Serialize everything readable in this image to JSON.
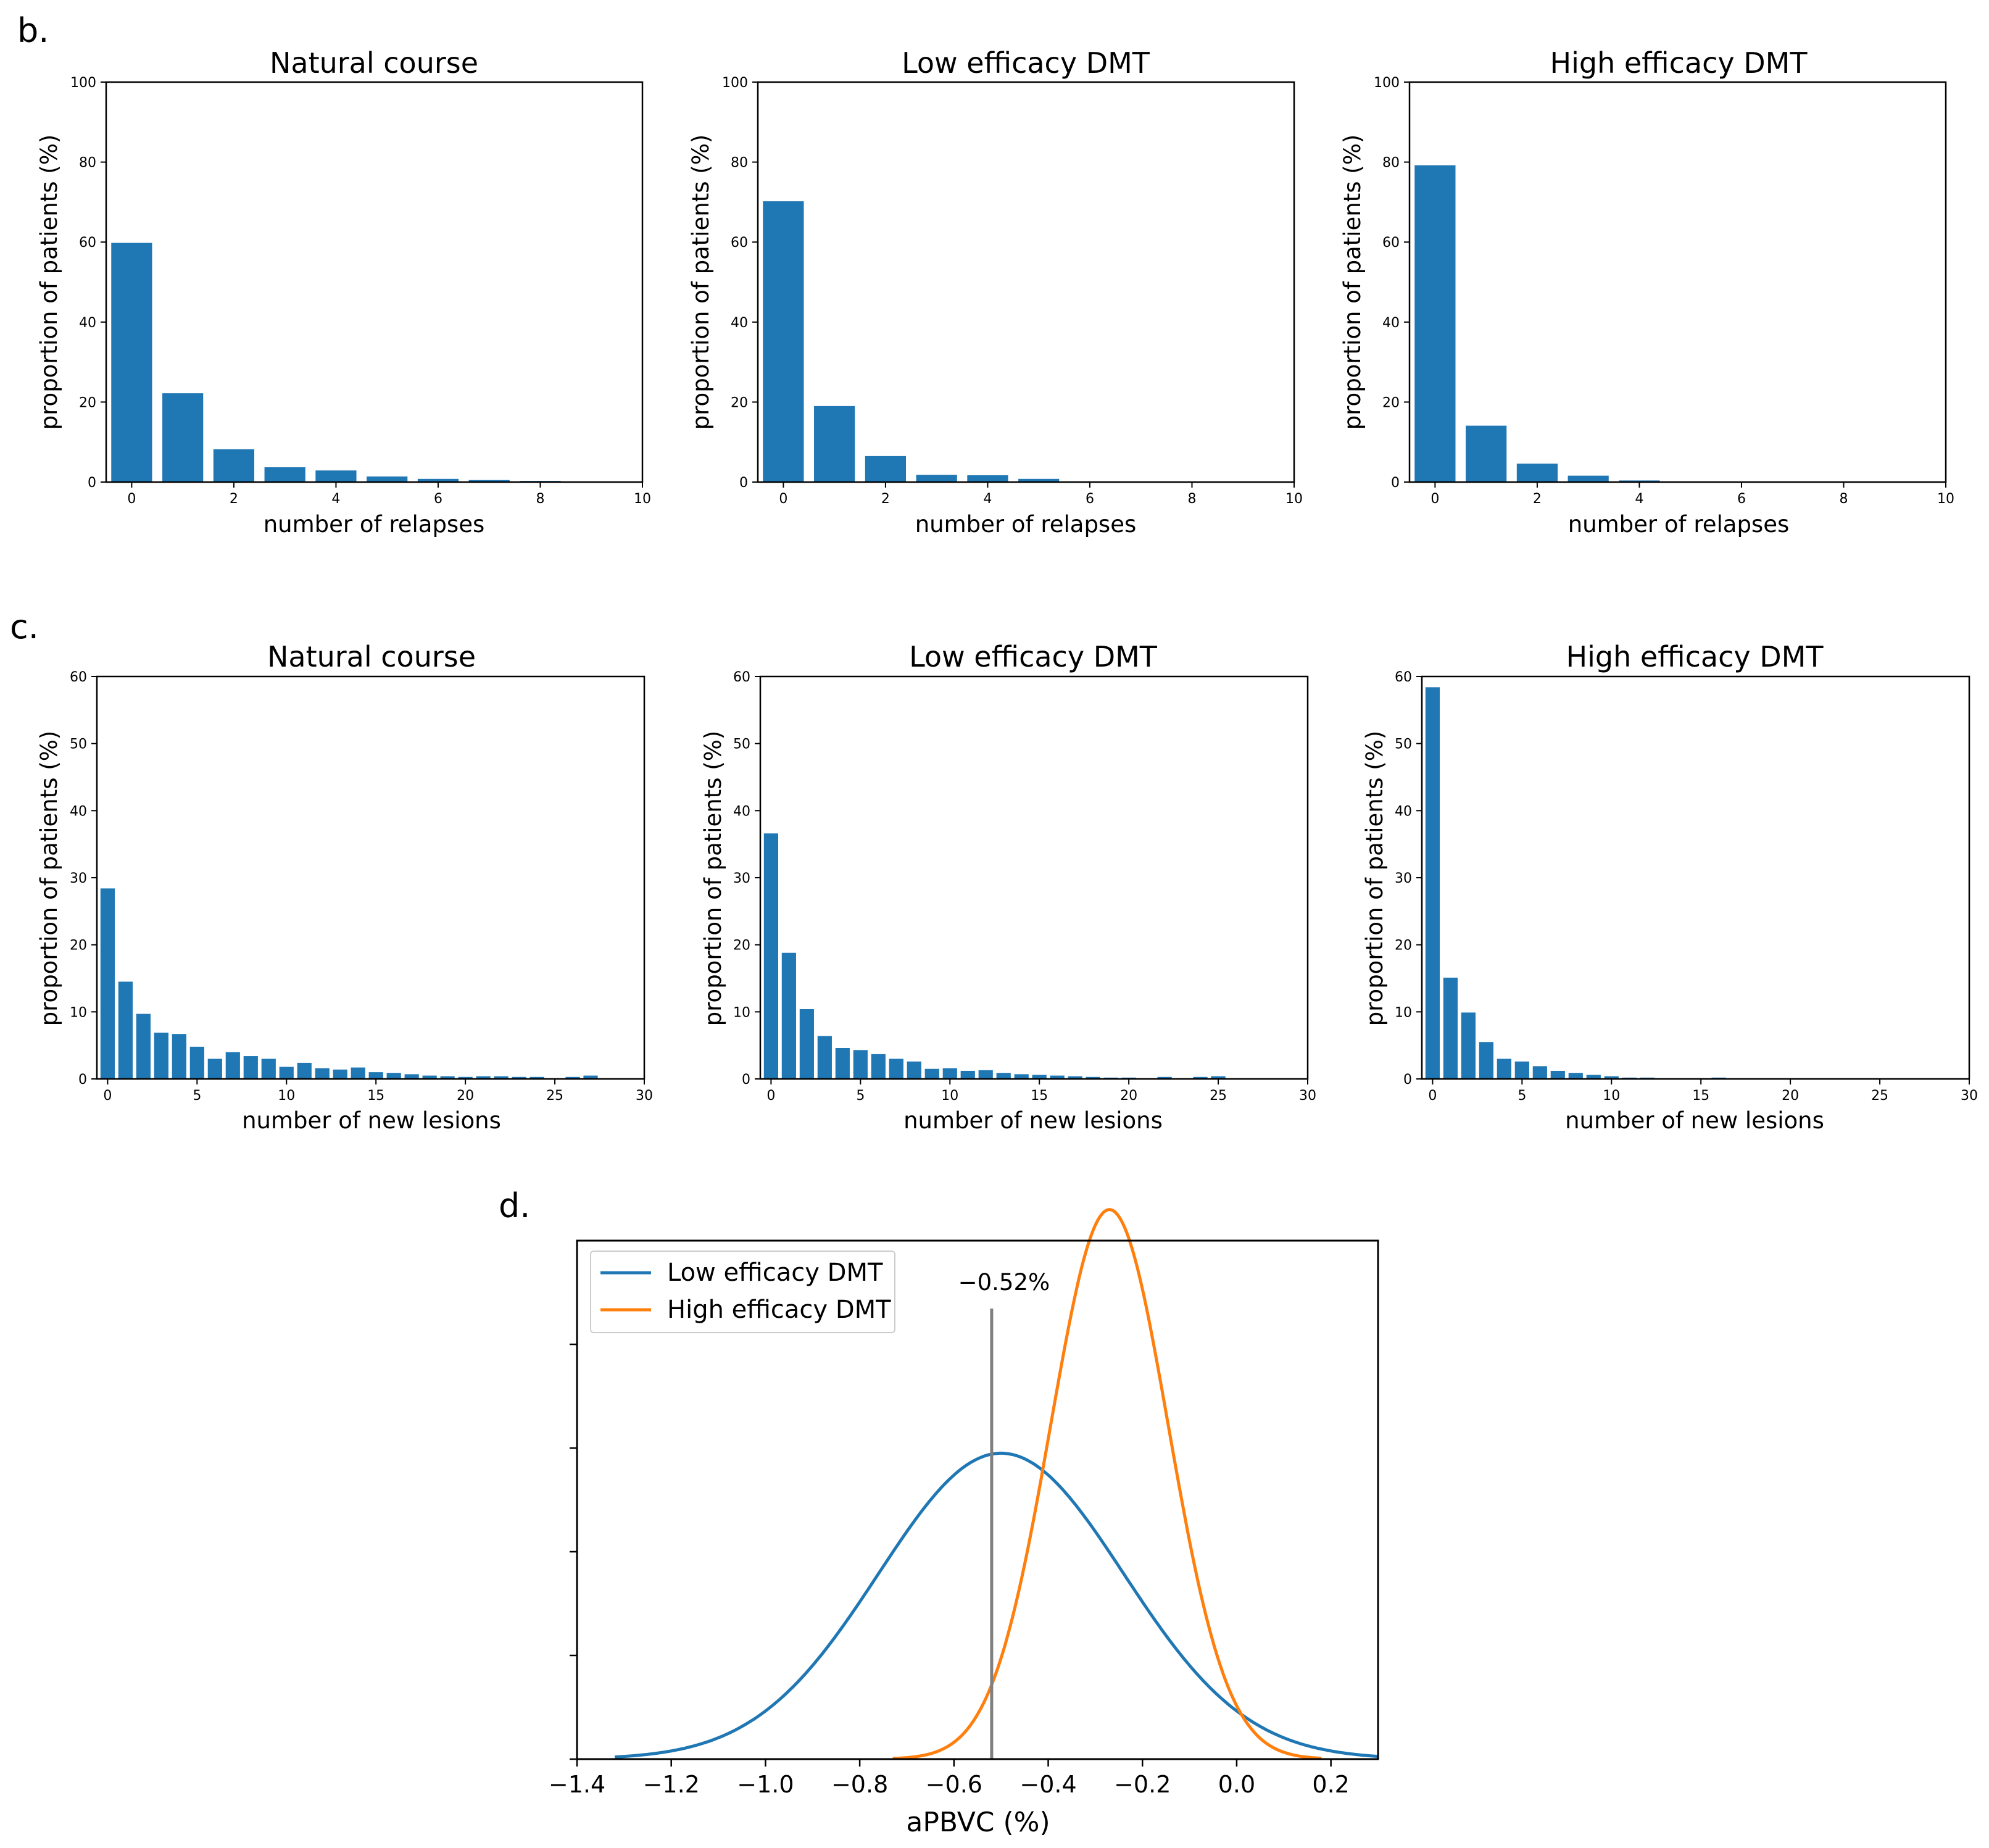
{
  "figure": {
    "panel_labels": [
      "b.",
      "c.",
      "d."
    ]
  },
  "colors": {
    "bar": "#1f77b4",
    "low": "#1f77b4",
    "high": "#ff7f0e",
    "vline": "#808080",
    "axis": "#000000"
  },
  "chart_data": [
    {
      "id": "b1",
      "panel": "b.",
      "type": "bar",
      "title": "Natural course",
      "xlabel": "number of relapses",
      "ylabel": "proportion of patients (%)",
      "xlim": [
        -0.5,
        10
      ],
      "ylim": [
        0,
        100
      ],
      "xticks": [
        0,
        2,
        4,
        6,
        8,
        10
      ],
      "yticks": [
        0,
        20,
        40,
        60,
        80,
        100
      ],
      "x": [
        0,
        1,
        2,
        3,
        4,
        5,
        6,
        7,
        8
      ],
      "values": [
        59.8,
        22.2,
        8.2,
        3.7,
        2.9,
        1.4,
        0.8,
        0.5,
        0.3
      ]
    },
    {
      "id": "b2",
      "panel": "b.",
      "type": "bar",
      "title": "Low efficacy DMT",
      "xlabel": "number of relapses",
      "ylabel": "proportion of patients (%)",
      "xlim": [
        -0.5,
        10
      ],
      "ylim": [
        0,
        100
      ],
      "xticks": [
        0,
        2,
        4,
        6,
        8,
        10
      ],
      "yticks": [
        0,
        20,
        40,
        60,
        80,
        100
      ],
      "x": [
        0,
        1,
        2,
        3,
        4,
        5
      ],
      "values": [
        70.2,
        19.0,
        6.5,
        1.8,
        1.7,
        0.8
      ]
    },
    {
      "id": "b3",
      "panel": "b.",
      "type": "bar",
      "title": "High efficacy DMT",
      "xlabel": "number of relapses",
      "ylabel": "proportion of patients (%)",
      "xlim": [
        -0.5,
        10
      ],
      "ylim": [
        0,
        100
      ],
      "xticks": [
        0,
        2,
        4,
        6,
        8,
        10
      ],
      "yticks": [
        0,
        20,
        40,
        60,
        80,
        100
      ],
      "x": [
        0,
        1,
        2,
        3,
        4
      ],
      "values": [
        79.2,
        14.1,
        4.6,
        1.6,
        0.4
      ]
    },
    {
      "id": "c1",
      "panel": "c.",
      "type": "bar",
      "title": "Natural course",
      "xlabel": "number of new lesions",
      "ylabel": "proportion of patients (%)",
      "xlim": [
        -0.6,
        30
      ],
      "ylim": [
        0,
        60
      ],
      "xticks": [
        0,
        5,
        10,
        15,
        20,
        25,
        30
      ],
      "yticks": [
        0,
        10,
        20,
        30,
        40,
        50,
        60
      ],
      "x": [
        0,
        1,
        2,
        3,
        4,
        5,
        6,
        7,
        8,
        9,
        10,
        11,
        12,
        13,
        14,
        15,
        16,
        17,
        18,
        19,
        20,
        21,
        22,
        23,
        24,
        25,
        26,
        27
      ],
      "values": [
        28.4,
        14.5,
        9.7,
        6.9,
        6.7,
        4.8,
        3.0,
        4.0,
        3.4,
        3.0,
        1.8,
        2.4,
        1.6,
        1.4,
        1.7,
        1.0,
        0.9,
        0.7,
        0.5,
        0.4,
        0.3,
        0.4,
        0.4,
        0.3,
        0.3,
        0.0,
        0.3,
        0.5
      ]
    },
    {
      "id": "c2",
      "panel": "c.",
      "type": "bar",
      "title": "Low efficacy DMT",
      "xlabel": "number of new lesions",
      "ylabel": "proportion of patients (%)",
      "xlim": [
        -0.6,
        30
      ],
      "ylim": [
        0,
        60
      ],
      "xticks": [
        0,
        5,
        10,
        15,
        20,
        25,
        30
      ],
      "yticks": [
        0,
        10,
        20,
        30,
        40,
        50,
        60
      ],
      "x": [
        0,
        1,
        2,
        3,
        4,
        5,
        6,
        7,
        8,
        9,
        10,
        11,
        12,
        13,
        14,
        15,
        16,
        17,
        18,
        19,
        20,
        21,
        22,
        23,
        24,
        25
      ],
      "values": [
        36.6,
        18.8,
        10.4,
        6.4,
        4.6,
        4.3,
        3.7,
        3.0,
        2.6,
        1.5,
        1.6,
        1.2,
        1.3,
        0.9,
        0.7,
        0.6,
        0.5,
        0.4,
        0.3,
        0.2,
        0.2,
        0.0,
        0.3,
        0.0,
        0.3,
        0.4
      ]
    },
    {
      "id": "c3",
      "panel": "c.",
      "type": "bar",
      "title": "High efficacy DMT",
      "xlabel": "number of new lesions",
      "ylabel": "proportion of patients (%)",
      "xlim": [
        -0.6,
        30
      ],
      "ylim": [
        0,
        60
      ],
      "xticks": [
        0,
        5,
        10,
        15,
        20,
        25,
        30
      ],
      "yticks": [
        0,
        10,
        20,
        30,
        40,
        50,
        60
      ],
      "x": [
        0,
        1,
        2,
        3,
        4,
        5,
        6,
        7,
        8,
        9,
        10,
        11,
        12,
        13,
        14,
        15,
        16
      ],
      "values": [
        58.4,
        15.1,
        9.9,
        5.5,
        3.0,
        2.6,
        1.9,
        1.2,
        0.9,
        0.6,
        0.4,
        0.2,
        0.2,
        0.1,
        0.1,
        0.1,
        0.2
      ]
    },
    {
      "id": "d",
      "panel": "d.",
      "type": "line",
      "title": "",
      "xlabel": "aPBVC (%)",
      "ylabel": "",
      "xlim": [
        -1.4,
        0.3
      ],
      "ylim": [
        0,
        1.0
      ],
      "xticks": [
        -1.4,
        -1.2,
        -1.0,
        -0.8,
        -0.6,
        -0.4,
        -0.2,
        0.0,
        0.2
      ],
      "xtick_labels": [
        "−1.4",
        "−1.2",
        "−1.0",
        "−0.8",
        "−0.6",
        "−0.4",
        "−0.2",
        "0.0",
        "0.2"
      ],
      "yticks": [
        0.0,
        0.2,
        0.4,
        0.6,
        0.8
      ],
      "legend_position": "top-left",
      "series": [
        {
          "name": "Low efficacy DMT",
          "color": "#1f77b4",
          "mean": -0.5,
          "sd": 0.26,
          "peak": 0.59,
          "x_range": [
            -1.32,
            0.3
          ]
        },
        {
          "name": "High efficacy DMT",
          "color": "#ff7f0e",
          "mean": -0.27,
          "sd": 0.125,
          "peak": 1.06,
          "x_range": [
            -0.73,
            0.18
          ]
        }
      ],
      "annotation": {
        "x": -0.52,
        "label": "−0.52%"
      }
    }
  ]
}
